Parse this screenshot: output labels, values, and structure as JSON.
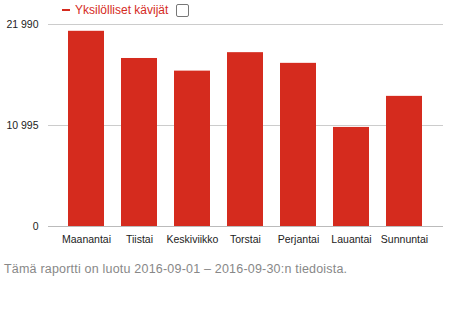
{
  "chart_data": {
    "type": "bar",
    "caption": "Tämä raportti on luotu 2016-09-01 – 2016-09-30:n tiedoista.",
    "categories": [
      "Maanantai",
      "Tiistai",
      "Keskiviikko",
      "Torstai",
      "Perjantai",
      "Lauantai",
      "Sunnuntai"
    ],
    "series": [
      {
        "name": "Yksilölliset kävijät",
        "color": "#d52b1e",
        "values": [
          21250,
          18290,
          16915,
          18924,
          17761,
          10784,
          14167
        ]
      }
    ],
    "ylim": [
      0,
      21990
    ],
    "yticks": [
      0,
      {
        "value": 10995,
        "label": "10 995"
      },
      {
        "value": 21990,
        "label": "21 990"
      }
    ],
    "grid": true,
    "legend": "top-left"
  }
}
